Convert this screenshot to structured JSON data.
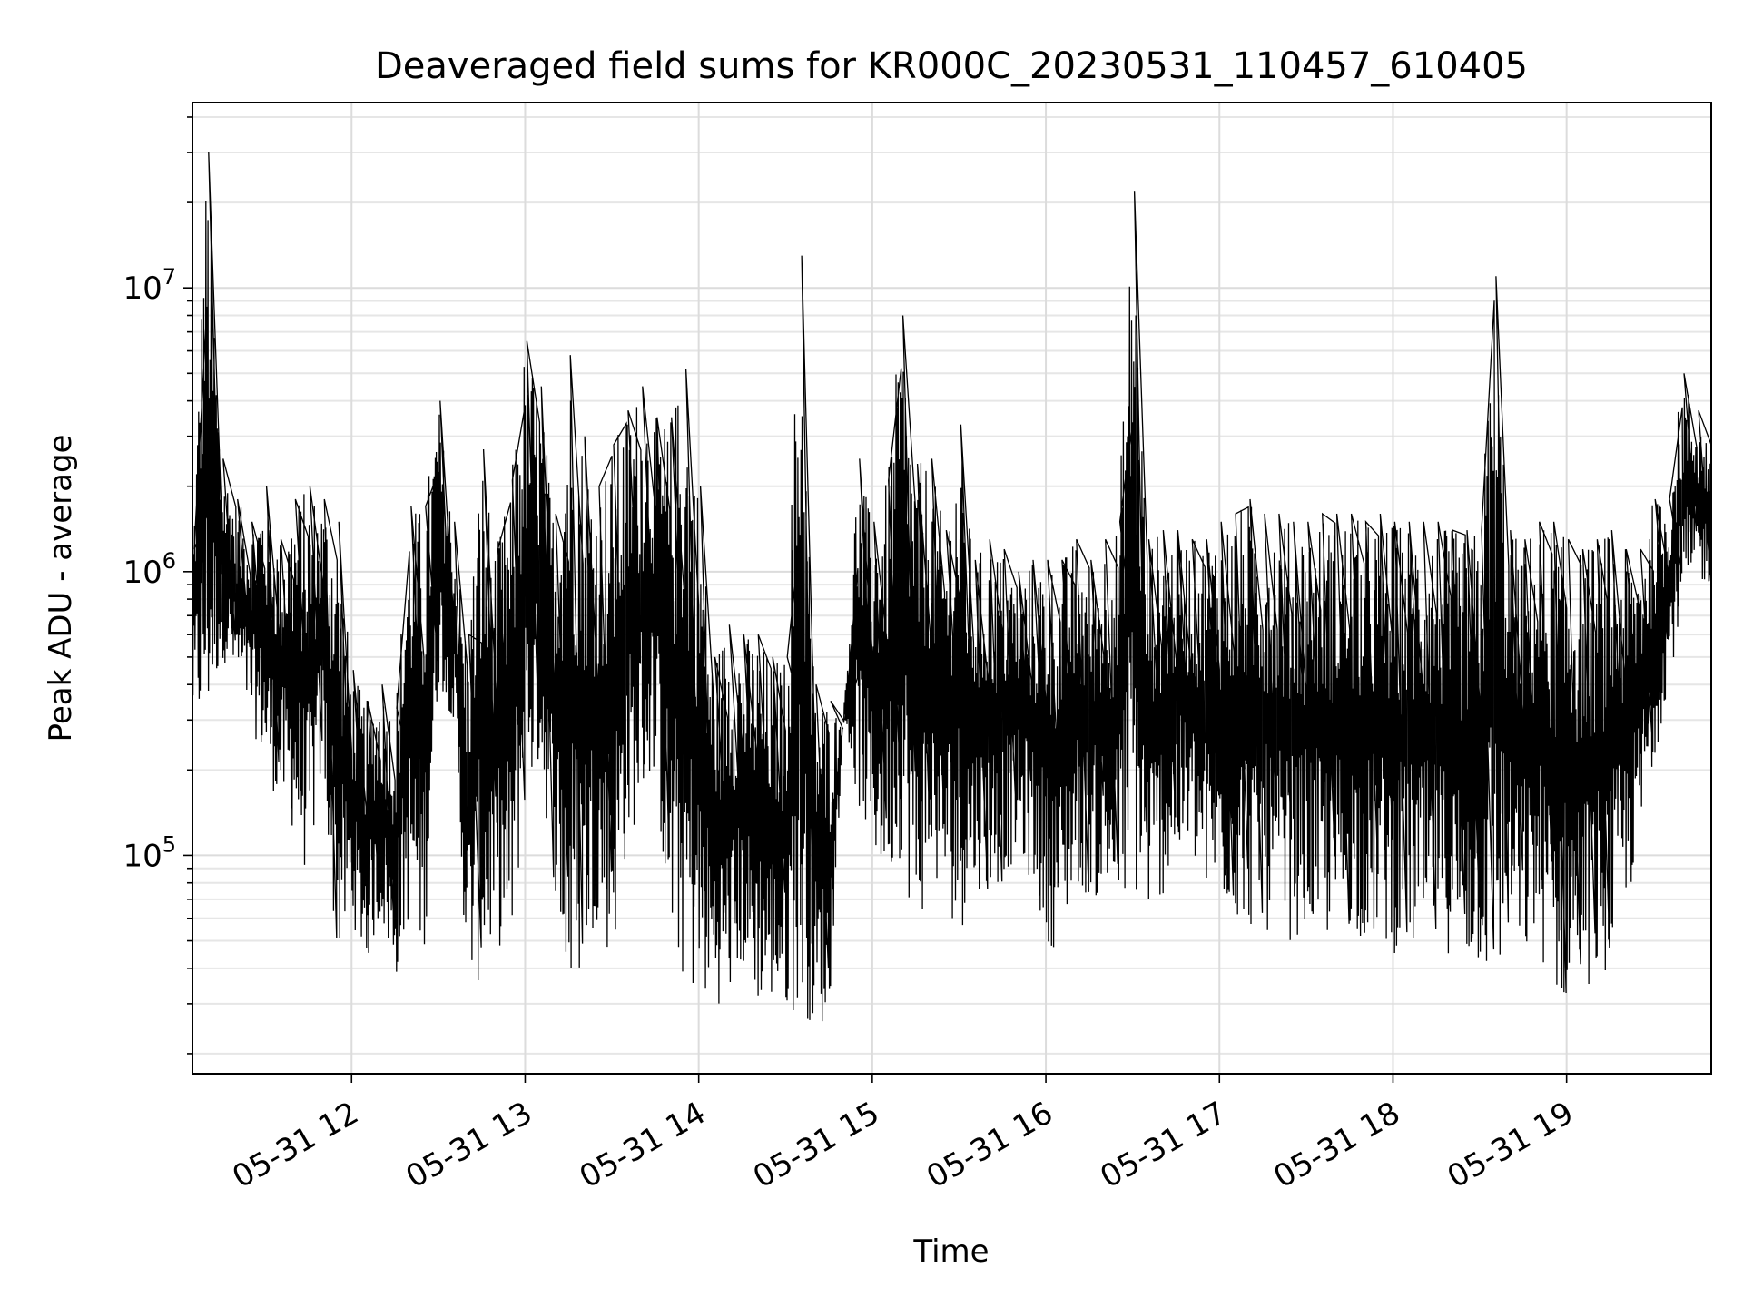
{
  "chart_data": {
    "type": "line",
    "title": "Deaveraged field sums for KR000C_20230531_110457_610405",
    "xlabel": "Time",
    "ylabel": "Peak ADU - average",
    "y_scale": "log",
    "xlim": [
      "2023-05-31 11:05",
      "2023-05-31 19:50"
    ],
    "ylim": [
      17000,
      45000000
    ],
    "x_tick_labels": [
      "05-31 12",
      "05-31 13",
      "05-31 14",
      "05-31 15",
      "05-31 16",
      "05-31 17",
      "05-31 18",
      "05-31 19"
    ],
    "x_tick_values": [
      "2023-05-31 12:00",
      "2023-05-31 13:00",
      "2023-05-31 14:00",
      "2023-05-31 15:00",
      "2023-05-31 16:00",
      "2023-05-31 17:00",
      "2023-05-31 18:00",
      "2023-05-31 19:00"
    ],
    "y_tick_values": [
      100000,
      1000000,
      10000000
    ],
    "y_tick_labels": [
      {
        "base": "10",
        "exp": "5"
      },
      {
        "base": "10",
        "exp": "6"
      },
      {
        "base": "10",
        "exp": "7"
      }
    ],
    "grid": true,
    "line_color": "#000000",
    "series": [
      {
        "x": [
          "2023-05-31 11:05",
          "2023-05-31 11:10",
          "2023-05-31 11:15",
          "2023-05-31 11:20",
          "2023-05-31 11:25",
          "2023-05-31 11:30",
          "2023-05-31 11:35",
          "2023-05-31 11:40",
          "2023-05-31 11:45",
          "2023-05-31 11:50",
          "2023-05-31 11:55",
          "2023-05-31 12:00",
          "2023-05-31 12:05",
          "2023-05-31 12:10",
          "2023-05-31 12:15",
          "2023-05-31 12:20",
          "2023-05-31 12:25",
          "2023-05-31 12:30",
          "2023-05-31 12:35",
          "2023-05-31 12:40",
          "2023-05-31 12:45",
          "2023-05-31 12:50",
          "2023-05-31 12:55",
          "2023-05-31 13:00",
          "2023-05-31 13:05",
          "2023-05-31 13:10",
          "2023-05-31 13:15",
          "2023-05-31 13:20",
          "2023-05-31 13:25",
          "2023-05-31 13:30",
          "2023-05-31 13:35",
          "2023-05-31 13:40",
          "2023-05-31 13:45",
          "2023-05-31 13:50",
          "2023-05-31 13:55",
          "2023-05-31 14:00",
          "2023-05-31 14:05",
          "2023-05-31 14:10",
          "2023-05-31 14:15",
          "2023-05-31 14:20",
          "2023-05-31 14:25",
          "2023-05-31 14:30",
          "2023-05-31 14:35",
          "2023-05-31 14:40",
          "2023-05-31 14:45",
          "2023-05-31 14:50",
          "2023-05-31 14:55",
          "2023-05-31 15:00",
          "2023-05-31 15:05",
          "2023-05-31 15:10",
          "2023-05-31 15:15",
          "2023-05-31 15:20",
          "2023-05-31 15:25",
          "2023-05-31 15:30",
          "2023-05-31 15:35",
          "2023-05-31 15:40",
          "2023-05-31 15:45",
          "2023-05-31 15:50",
          "2023-05-31 15:55",
          "2023-05-31 16:00",
          "2023-05-31 16:05",
          "2023-05-31 16:10",
          "2023-05-31 16:15",
          "2023-05-31 16:20",
          "2023-05-31 16:25",
          "2023-05-31 16:30",
          "2023-05-31 16:35",
          "2023-05-31 16:40",
          "2023-05-31 16:45",
          "2023-05-31 16:50",
          "2023-05-31 16:55",
          "2023-05-31 17:00",
          "2023-05-31 17:05",
          "2023-05-31 17:10",
          "2023-05-31 17:15",
          "2023-05-31 17:20",
          "2023-05-31 17:25",
          "2023-05-31 17:30",
          "2023-05-31 17:35",
          "2023-05-31 17:40",
          "2023-05-31 17:45",
          "2023-05-31 17:50",
          "2023-05-31 17:55",
          "2023-05-31 18:00",
          "2023-05-31 18:05",
          "2023-05-31 18:10",
          "2023-05-31 18:15",
          "2023-05-31 18:20",
          "2023-05-31 18:25",
          "2023-05-31 18:30",
          "2023-05-31 18:35",
          "2023-05-31 18:40",
          "2023-05-31 18:45",
          "2023-05-31 18:50",
          "2023-05-31 18:55",
          "2023-05-31 19:00",
          "2023-05-31 19:05",
          "2023-05-31 19:10",
          "2023-05-31 19:15",
          "2023-05-31 19:20",
          "2023-05-31 19:25",
          "2023-05-31 19:30",
          "2023-05-31 19:35",
          "2023-05-31 19:40",
          "2023-05-31 19:45",
          "2023-05-31 19:50"
        ],
        "y_high": [
          1200000,
          30000000,
          2500000,
          1800000,
          1500000,
          2000000,
          1300000,
          1800000,
          2000000,
          1800000,
          1500000,
          450000,
          350000,
          400000,
          330000,
          1700000,
          1700000,
          4000000,
          1500000,
          600000,
          2700000,
          1200000,
          2100000,
          6500000,
          4500000,
          1600000,
          5800000,
          3000000,
          2000000,
          2800000,
          3700000,
          4500000,
          3500000,
          3500000,
          5200000,
          2000000,
          500000,
          650000,
          600000,
          600000,
          500000,
          500000,
          13000000,
          400000,
          350000,
          300000,
          2500000,
          1500000,
          2100000,
          8000000,
          2400000,
          2500000,
          1400000,
          3300000,
          1100000,
          1300000,
          1200000,
          1000000,
          1100000,
          1100000,
          1100000,
          1300000,
          1100000,
          1300000,
          1500000,
          22000000,
          1300000,
          1400000,
          1400000,
          1300000,
          1300000,
          1500000,
          1600000,
          1800000,
          1600000,
          1600000,
          1500000,
          1500000,
          1600000,
          1600000,
          1600000,
          1500000,
          1600000,
          1500000,
          1500000,
          1500000,
          1500000,
          1400000,
          1400000,
          1400000,
          11000000,
          1400000,
          1300000,
          1500000,
          1500000,
          1300000,
          1200000,
          1300000,
          1400000,
          1200000,
          1200000,
          1800000,
          1800000,
          5000000,
          3700000,
          2800000
        ],
        "y_low": [
          300000,
          250000,
          500000,
          400000,
          300000,
          200000,
          150000,
          120000,
          80000,
          200000,
          40000,
          60000,
          40000,
          60000,
          35000,
          60000,
          40000,
          400000,
          300000,
          35000,
          35000,
          50000,
          40000,
          150000,
          200000,
          80000,
          25000,
          40000,
          60000,
          40000,
          100000,
          150000,
          200000,
          45000,
          35000,
          30000,
          30000,
          30000,
          40000,
          30000,
          30000,
          28000,
          28000,
          25000,
          25000,
          300000,
          150000,
          100000,
          80000,
          100000,
          50000,
          80000,
          70000,
          50000,
          80000,
          70000,
          80000,
          100000,
          80000,
          50000,
          45000,
          80000,
          70000,
          70000,
          60000,
          70000,
          60000,
          70000,
          90000,
          100000,
          70000,
          70000,
          60000,
          55000,
          55000,
          50000,
          50000,
          55000,
          50000,
          50000,
          55000,
          50000,
          50000,
          45000,
          45000,
          45000,
          45000,
          45000,
          40000,
          40000,
          30000,
          50000,
          40000,
          50000,
          30000,
          30000,
          35000,
          35000,
          40000,
          60000,
          100000,
          200000,
          400000,
          700000,
          900000,
          900000
        ]
      }
    ]
  }
}
